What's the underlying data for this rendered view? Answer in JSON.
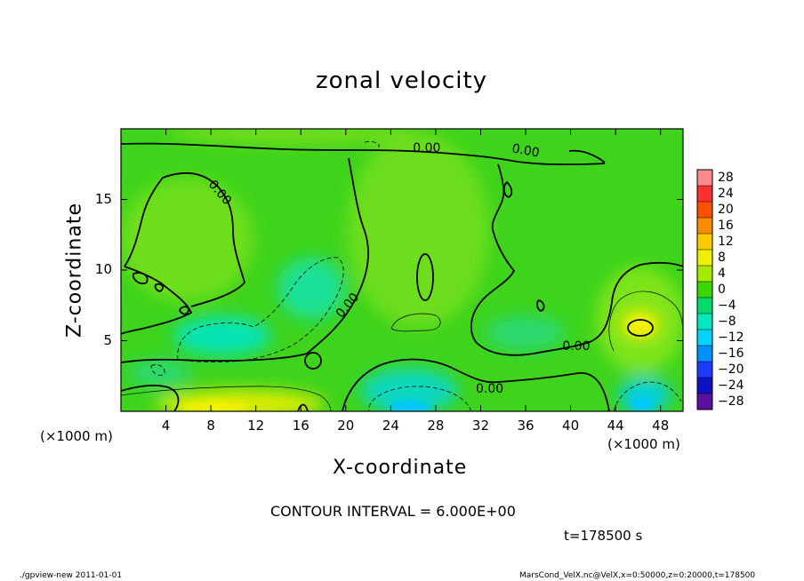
{
  "chart_data": {
    "type": "heatmap",
    "title": "zonal velocity",
    "xlabel": "X-coordinate",
    "ylabel": "Z-coordinate",
    "x_unit_label": "(×1000 m)",
    "z_unit_label": "(×1000 m)",
    "xlim": [
      0,
      50
    ],
    "ylim": [
      0,
      20
    ],
    "x_ticks": [
      4,
      8,
      12,
      16,
      20,
      24,
      28,
      32,
      36,
      40,
      44,
      48
    ],
    "y_ticks": [
      5,
      10,
      15
    ],
    "colorbar": {
      "levels": [
        28,
        24,
        20,
        16,
        12,
        8,
        4,
        0,
        -4,
        -8,
        -12,
        -16,
        -20,
        -24,
        -28
      ],
      "labels": [
        "28",
        "24",
        "20",
        "16",
        "12",
        "8",
        "4",
        "0",
        "−4",
        "−8",
        "−12",
        "−16",
        "−20",
        "−24",
        "−28"
      ],
      "colors": [
        "#ff8a8a",
        "#ff2f2f",
        "#ff5000",
        "#ff8c00",
        "#ffcc00",
        "#eef000",
        "#a6ea00",
        "#38d800",
        "#00dd6e",
        "#00e8c0",
        "#00d4ff",
        "#0090ff",
        "#1a3cff",
        "#1010c8",
        "#5a10a0"
      ]
    },
    "contour_labels": [
      {
        "text": "0.00",
        "x": 27.2,
        "z": 18.6
      },
      {
        "text": "0.00",
        "x": 36.0,
        "z": 18.4
      },
      {
        "text": "0.00",
        "x": 8.8,
        "z": 15.5
      },
      {
        "text": "0.00",
        "x": 20.2,
        "z": 7.5
      },
      {
        "text": "0.00",
        "x": 40.5,
        "z": 4.6
      },
      {
        "text": "0.00",
        "x": 32.8,
        "z": 1.6
      }
    ],
    "contour_interval_text": "CONTOUR INTERVAL = 6.000E+00",
    "time_text": "t=178500 s"
  },
  "footer": {
    "left": "./gpview-new  2011-01-01",
    "right": "MarsCond_VelX.nc@VelX,x=0:50000,z=0:20000,t=178500"
  },
  "colors": {
    "field_base": "#33d61a",
    "field_light": "#6fe01c",
    "positive_yellow": "#e8ef00",
    "negative_cyan": "#00e6c8"
  }
}
